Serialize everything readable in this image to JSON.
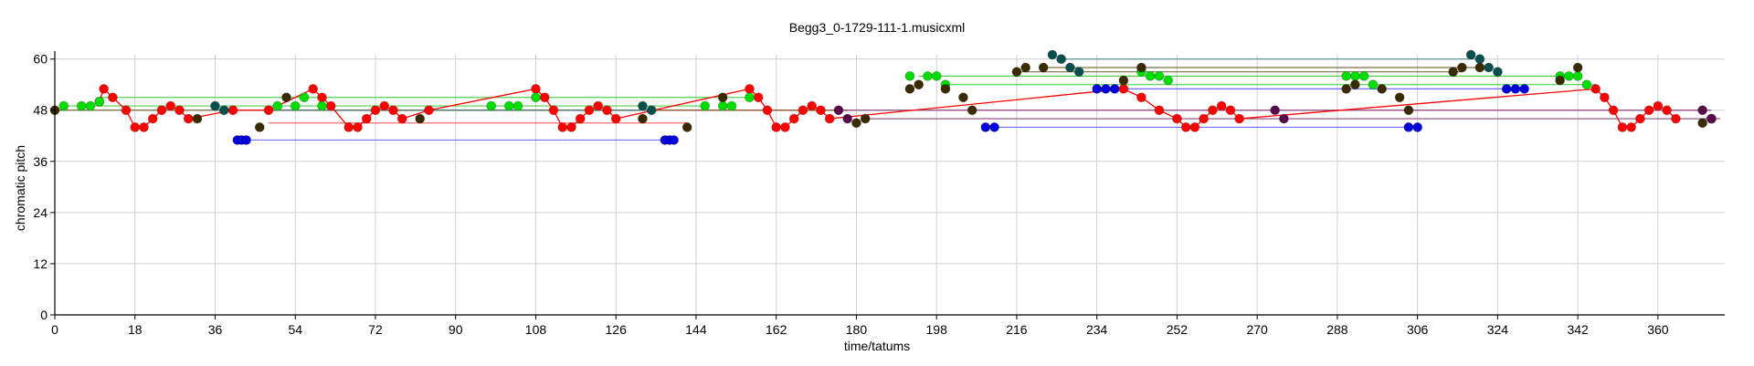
{
  "chart_data": {
    "type": "scatter",
    "title": "Begg3_0-1729-111-1.musicxml",
    "xlabel": "time/tatums",
    "ylabel": "chromatic pitch",
    "xlim": [
      0,
      375
    ],
    "ylim": [
      0,
      61
    ],
    "grid": true,
    "x_ticks": [
      0,
      18,
      36,
      54,
      72,
      90,
      108,
      126,
      144,
      162,
      180,
      198,
      216,
      234,
      252,
      270,
      288,
      306,
      324,
      342,
      360
    ],
    "y_ticks": [
      0,
      12,
      24,
      36,
      48,
      60
    ],
    "series": [
      {
        "color": "#ff0000",
        "connected": true,
        "points": [
          [
            10,
            50
          ],
          [
            11,
            53
          ],
          [
            13,
            51
          ],
          [
            16,
            48
          ],
          [
            18,
            44
          ],
          [
            20,
            44
          ],
          [
            22,
            46
          ],
          [
            24,
            48
          ],
          [
            26,
            49
          ],
          [
            28,
            48
          ],
          [
            30,
            46
          ],
          [
            40,
            48
          ],
          [
            48,
            48
          ],
          [
            58,
            53
          ],
          [
            60,
            51
          ],
          [
            62,
            49
          ],
          [
            66,
            44
          ],
          [
            68,
            44
          ],
          [
            70,
            46
          ],
          [
            72,
            48
          ],
          [
            74,
            49
          ],
          [
            76,
            48
          ],
          [
            78,
            46
          ],
          [
            84,
            48
          ],
          [
            108,
            53
          ],
          [
            110,
            51
          ],
          [
            112,
            48
          ],
          [
            114,
            44
          ],
          [
            116,
            44
          ],
          [
            118,
            46
          ],
          [
            120,
            48
          ],
          [
            122,
            49
          ],
          [
            124,
            48
          ],
          [
            126,
            46
          ],
          [
            156,
            53
          ],
          [
            158,
            51
          ],
          [
            160,
            48
          ],
          [
            162,
            44
          ],
          [
            164,
            44
          ],
          [
            166,
            46
          ],
          [
            168,
            48
          ],
          [
            170,
            49
          ],
          [
            172,
            48
          ],
          [
            174,
            46
          ],
          [
            240,
            53
          ],
          [
            244,
            51
          ],
          [
            248,
            48
          ],
          [
            252,
            46
          ],
          [
            254,
            44
          ],
          [
            256,
            44
          ],
          [
            258,
            46
          ],
          [
            260,
            48
          ],
          [
            262,
            49
          ],
          [
            264,
            48
          ],
          [
            266,
            46
          ],
          [
            346,
            53
          ],
          [
            348,
            51
          ],
          [
            350,
            48
          ],
          [
            352,
            44
          ],
          [
            354,
            44
          ],
          [
            356,
            46
          ],
          [
            358,
            48
          ],
          [
            360,
            49
          ],
          [
            362,
            48
          ],
          [
            364,
            46
          ]
        ]
      },
      {
        "color": "#00dd00",
        "connected": false,
        "points": [
          [
            2,
            49
          ],
          [
            6,
            49
          ],
          [
            8,
            49
          ],
          [
            10,
            50
          ],
          [
            50,
            49
          ],
          [
            54,
            49
          ],
          [
            56,
            51
          ],
          [
            60,
            49
          ],
          [
            98,
            49
          ],
          [
            102,
            49
          ],
          [
            104,
            49
          ],
          [
            108,
            51
          ],
          [
            146,
            49
          ],
          [
            150,
            49
          ],
          [
            152,
            49
          ],
          [
            156,
            51
          ],
          [
            192,
            56
          ],
          [
            196,
            56
          ],
          [
            198,
            56
          ],
          [
            200,
            54
          ],
          [
            244,
            57
          ],
          [
            246,
            56
          ],
          [
            248,
            56
          ],
          [
            250,
            55
          ],
          [
            290,
            56
          ],
          [
            292,
            56
          ],
          [
            294,
            56
          ],
          [
            296,
            54
          ],
          [
            338,
            56
          ],
          [
            340,
            56
          ],
          [
            342,
            56
          ],
          [
            344,
            54
          ]
        ]
      },
      {
        "color": "#0000dd",
        "connected": false,
        "points": [
          [
            41,
            41
          ],
          [
            42,
            41
          ],
          [
            43,
            41
          ],
          [
            137,
            41
          ],
          [
            138,
            41
          ],
          [
            139,
            41
          ],
          [
            209,
            44
          ],
          [
            211,
            44
          ],
          [
            234,
            53
          ],
          [
            236,
            53
          ],
          [
            238,
            53
          ],
          [
            304,
            44
          ],
          [
            306,
            44
          ],
          [
            326,
            53
          ],
          [
            328,
            53
          ],
          [
            330,
            53
          ]
        ]
      },
      {
        "color": "#3a2a00",
        "connected": false,
        "points": [
          [
            0,
            48
          ],
          [
            32,
            46
          ],
          [
            46,
            44
          ],
          [
            52,
            51
          ],
          [
            82,
            46
          ],
          [
            132,
            46
          ],
          [
            142,
            44
          ],
          [
            150,
            51
          ],
          [
            180,
            45
          ],
          [
            182,
            46
          ],
          [
            192,
            53
          ],
          [
            194,
            54
          ],
          [
            200,
            53
          ],
          [
            204,
            51
          ],
          [
            206,
            48
          ],
          [
            216,
            57
          ],
          [
            218,
            58
          ],
          [
            222,
            58
          ],
          [
            240,
            55
          ],
          [
            244,
            58
          ],
          [
            290,
            53
          ],
          [
            292,
            54
          ],
          [
            298,
            53
          ],
          [
            302,
            51
          ],
          [
            304,
            48
          ],
          [
            314,
            57
          ],
          [
            316,
            58
          ],
          [
            320,
            58
          ],
          [
            338,
            55
          ],
          [
            342,
            58
          ],
          [
            370,
            45
          ],
          [
            372,
            46
          ]
        ]
      },
      {
        "color": "#0a4f4f",
        "connected": false,
        "points": [
          [
            36,
            49
          ],
          [
            38,
            48
          ],
          [
            132,
            49
          ],
          [
            134,
            48
          ],
          [
            224,
            61
          ],
          [
            226,
            60
          ],
          [
            228,
            58
          ],
          [
            230,
            57
          ],
          [
            318,
            61
          ],
          [
            320,
            60
          ],
          [
            322,
            58
          ],
          [
            324,
            57
          ]
        ]
      },
      {
        "color": "#5a0a4a",
        "connected": false,
        "points": [
          [
            176,
            48
          ],
          [
            178,
            46
          ],
          [
            274,
            48
          ],
          [
            276,
            46
          ],
          [
            370,
            48
          ],
          [
            372,
            46
          ]
        ]
      }
    ],
    "sustain_lines": [
      {
        "color": "#33cc33",
        "x0": 2,
        "x1": 146,
        "y": 49
      },
      {
        "color": "#33cc33",
        "x0": 10,
        "x1": 156,
        "y": 51
      },
      {
        "color": "#33cc33",
        "x0": 194,
        "x1": 340,
        "y": 56
      },
      {
        "color": "#33cc33",
        "x0": 200,
        "x1": 346,
        "y": 54
      },
      {
        "color": "#ff5555",
        "x0": 40,
        "x1": 176,
        "y": 48
      },
      {
        "color": "#ff5555",
        "x0": 48,
        "x1": 142,
        "y": 45
      },
      {
        "color": "#5555ff",
        "x0": 41,
        "x1": 139,
        "y": 41
      },
      {
        "color": "#5555ff",
        "x0": 209,
        "x1": 306,
        "y": 44
      },
      {
        "color": "#5555ff",
        "x0": 234,
        "x1": 330,
        "y": 53
      },
      {
        "color": "#665522",
        "x0": 0,
        "x1": 178,
        "y": 48
      },
      {
        "color": "#665522",
        "x0": 216,
        "x1": 316,
        "y": 57
      },
      {
        "color": "#665522",
        "x0": 222,
        "x1": 320,
        "y": 58
      },
      {
        "color": "#3a7a7a",
        "x0": 226,
        "x1": 320,
        "y": 60
      },
      {
        "color": "#3a7a7a",
        "x0": 36,
        "x1": 134,
        "y": 48
      },
      {
        "color": "#7a2a6a",
        "x0": 176,
        "x1": 372,
        "y": 48
      },
      {
        "color": "#7a2a6a",
        "x0": 182,
        "x1": 374,
        "y": 46
      }
    ]
  }
}
